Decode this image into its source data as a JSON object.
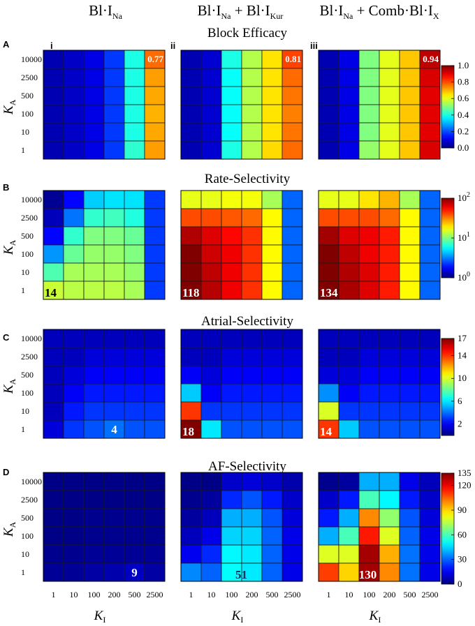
{
  "chart_data": {
    "type": "heatmap",
    "column_headers": [
      {
        "base": "Bl·I",
        "sub": "Na",
        "tail_base": "",
        "tail_sub": ""
      },
      {
        "base": "Bl·I",
        "sub": "Na",
        "tail_base": " + Bl·I",
        "tail_sub": "Kur"
      },
      {
        "base": "Bl·I",
        "sub": "Na",
        "tail_base": " + Comb·Bl·I",
        "tail_sub": "X"
      }
    ],
    "panel_numerals": [
      "i",
      "ii",
      "iii"
    ],
    "xlabel": {
      "base": "K",
      "sub": "I"
    },
    "ylabel": {
      "base": "K",
      "sub": "A"
    },
    "x_ticks": [
      "1",
      "10",
      "100",
      "200",
      "500",
      "2500"
    ],
    "y_ticks": [
      "10000",
      "2500",
      "500",
      "100",
      "10",
      "1"
    ],
    "rows": [
      {
        "letter": "A",
        "title": "Block Efficacy",
        "scale": "linear",
        "range": [
          0,
          1
        ],
        "colorbar_ticks": [
          "0.0",
          "0.2",
          "0.4",
          "0.6",
          "0.8",
          "1.0"
        ],
        "colorbar_tick_values": [
          0,
          0.2,
          0.4,
          0.6,
          0.8,
          1.0
        ],
        "colorbar_label_mode": "plain",
        "annotations": [
          {
            "value": "0.77",
            "row": 0,
            "col": 5,
            "size": "small"
          },
          {
            "value": "0.81",
            "row": 0,
            "col": 5,
            "size": "small"
          },
          {
            "value": "0.94",
            "row": 0,
            "col": 5,
            "size": "small"
          }
        ],
        "matrices": [
          [
            [
              0.05,
              0.07,
              0.1,
              0.18,
              0.4,
              0.77
            ],
            [
              0.05,
              0.07,
              0.1,
              0.18,
              0.4,
              0.72
            ],
            [
              0.05,
              0.07,
              0.1,
              0.18,
              0.4,
              0.71
            ],
            [
              0.05,
              0.07,
              0.1,
              0.18,
              0.4,
              0.7
            ],
            [
              0.05,
              0.07,
              0.1,
              0.18,
              0.4,
              0.71
            ],
            [
              0.05,
              0.07,
              0.1,
              0.18,
              0.42,
              0.72
            ]
          ],
          [
            [
              0.05,
              0.08,
              0.4,
              0.55,
              0.65,
              0.81
            ],
            [
              0.05,
              0.08,
              0.38,
              0.55,
              0.65,
              0.77
            ],
            [
              0.05,
              0.08,
              0.38,
              0.55,
              0.65,
              0.76
            ],
            [
              0.05,
              0.08,
              0.38,
              0.55,
              0.65,
              0.75
            ],
            [
              0.05,
              0.08,
              0.38,
              0.55,
              0.65,
              0.76
            ],
            [
              0.05,
              0.08,
              0.4,
              0.55,
              0.66,
              0.77
            ]
          ],
          [
            [
              0.05,
              0.1,
              0.5,
              0.6,
              0.68,
              0.94
            ],
            [
              0.05,
              0.1,
              0.5,
              0.6,
              0.68,
              0.91
            ],
            [
              0.05,
              0.1,
              0.5,
              0.6,
              0.68,
              0.9
            ],
            [
              0.05,
              0.1,
              0.5,
              0.6,
              0.68,
              0.9
            ],
            [
              0.05,
              0.1,
              0.5,
              0.6,
              0.68,
              0.9
            ],
            [
              0.05,
              0.1,
              0.52,
              0.6,
              0.68,
              0.91
            ]
          ]
        ]
      },
      {
        "letter": "B",
        "title": "Rate-Selectivity",
        "scale": "log",
        "range": [
          1,
          100
        ],
        "colorbar_ticks": [
          "10",
          "10",
          "10"
        ],
        "colorbar_exponents": [
          "0",
          "1",
          "2"
        ],
        "colorbar_tick_values": [
          1,
          10,
          100
        ],
        "colorbar_label_mode": "power",
        "annotations": [
          {
            "value": "14",
            "row": 5,
            "col": 0,
            "size": "big"
          },
          {
            "value": "118",
            "row": 5,
            "col": 0,
            "size": "big"
          },
          {
            "value": "134",
            "row": 5,
            "col": 0,
            "size": "big"
          }
        ],
        "matrices": [
          [
            [
              1.1,
              1.8,
              4.5,
              5.0,
              5.0,
              2.3
            ],
            [
              1.3,
              3.0,
              7.0,
              7.5,
              6.5,
              2.3
            ],
            [
              1.8,
              7.0,
              10,
              10,
              9,
              2.3
            ],
            [
              3.5,
              9,
              11,
              11,
              10,
              2.3
            ],
            [
              8,
              12,
              12,
              12,
              11,
              2.3
            ],
            [
              14,
              13,
              13,
              13,
              12,
              2.3
            ]
          ],
          [
            [
              16,
              16,
              17,
              17,
              12,
              2.8
            ],
            [
              40,
              40,
              38,
              35,
              18,
              2.8
            ],
            [
              80,
              65,
              55,
              45,
              18,
              2.8
            ],
            [
              100,
              70,
              60,
              45,
              18,
              2.8
            ],
            [
              112,
              75,
              60,
              45,
              18,
              2.8
            ],
            [
              118,
              78,
              60,
              45,
              18,
              2.8
            ]
          ],
          [
            [
              16,
              16,
              20,
              25,
              12,
              2.8
            ],
            [
              40,
              40,
              40,
              35,
              18,
              2.8
            ],
            [
              85,
              65,
              60,
              50,
              18,
              2.8
            ],
            [
              110,
              75,
              60,
              50,
              18,
              2.8
            ],
            [
              125,
              80,
              65,
              50,
              18,
              2.8
            ],
            [
              134,
              82,
              65,
              50,
              18,
              2.8
            ]
          ]
        ]
      },
      {
        "letter": "C",
        "title": "Atrial-Selectivity",
        "scale": "linear",
        "range": [
          0,
          17
        ],
        "colorbar_ticks": [
          "2",
          "6",
          "10",
          "14",
          "17"
        ],
        "colorbar_tick_values": [
          2,
          6,
          10,
          14,
          17
        ],
        "colorbar_label_mode": "plain",
        "annotations": [
          {
            "value": "4",
            "row": 5,
            "col": 3,
            "size": "small-mid"
          },
          {
            "value": "18",
            "row": 5,
            "col": 0,
            "size": "big"
          },
          {
            "value": "14",
            "row": 5,
            "col": 0,
            "size": "big"
          }
        ],
        "matrices": [
          [
            [
              1,
              1,
              1,
              1,
              1,
              1
            ],
            [
              1,
              1,
              1.5,
              1.5,
              1.5,
              1.5
            ],
            [
              1,
              1.5,
              2,
              2,
              2,
              2
            ],
            [
              1,
              2,
              2.5,
              2.5,
              2.5,
              2.5
            ],
            [
              1,
              2.5,
              3,
              3,
              3,
              3
            ],
            [
              1.5,
              3,
              3.5,
              4,
              3.5,
              3.5
            ]
          ],
          [
            [
              1,
              1,
              1,
              1,
              1,
              1
            ],
            [
              1,
              1,
              1.5,
              1.5,
              1.5,
              1.5
            ],
            [
              2,
              1.5,
              2,
              2,
              2,
              2
            ],
            [
              5.5,
              2,
              2.5,
              2.5,
              2.5,
              2.5
            ],
            [
              14,
              3,
              3,
              3,
              3,
              3
            ],
            [
              18,
              6,
              3.5,
              3.5,
              3.5,
              3.5
            ]
          ],
          [
            [
              1,
              1,
              1,
              1,
              1,
              1
            ],
            [
              1,
              1,
              1.5,
              1.5,
              1.5,
              1.5
            ],
            [
              1.5,
              1.5,
              2,
              2,
              2,
              2
            ],
            [
              4.5,
              2,
              2.5,
              2.5,
              2.5,
              2.5
            ],
            [
              10,
              3,
              3,
              3,
              3,
              3
            ],
            [
              14,
              5.5,
              3.5,
              3.5,
              3.5,
              3.5
            ]
          ]
        ]
      },
      {
        "letter": "D",
        "title": "AF-Selectivity",
        "scale": "linear",
        "range": [
          0,
          135
        ],
        "colorbar_ticks": [
          "0",
          "30",
          "60",
          "90",
          "120",
          "135"
        ],
        "colorbar_tick_values": [
          0,
          30,
          60,
          90,
          120,
          135
        ],
        "colorbar_label_mode": "plain",
        "annotations": [
          {
            "value": "9",
            "row": 5,
            "col": 4,
            "size": "small-mid"
          },
          {
            "value": "51",
            "row": 5,
            "col": 2,
            "size": "big"
          },
          {
            "value": "130",
            "row": 5,
            "col": 2,
            "size": "big"
          }
        ],
        "matrices": [
          [
            [
              1,
              1,
              1,
              1,
              1,
              1
            ],
            [
              1,
              1,
              1,
              1,
              1,
              1
            ],
            [
              1,
              1,
              2,
              2,
              2,
              2
            ],
            [
              1,
              1,
              2,
              2,
              2,
              2
            ],
            [
              2,
              2,
              3,
              3,
              3,
              3
            ],
            [
              3,
              3,
              5,
              6,
              9,
              5
            ]
          ],
          [
            [
              1,
              1,
              10,
              12,
              10,
              6
            ],
            [
              2,
              4,
              22,
              28,
              20,
              10
            ],
            [
              4,
              8,
              40,
              40,
              28,
              12
            ],
            [
              8,
              14,
              45,
              45,
              30,
              14
            ],
            [
              15,
              22,
              50,
              48,
              30,
              14
            ],
            [
              35,
              30,
              51,
              48,
              30,
              14
            ]
          ],
          [
            [
              2,
              4,
              40,
              40,
              14,
              8
            ],
            [
              10,
              20,
              60,
              50,
              20,
              10
            ],
            [
              20,
              40,
              100,
              70,
              28,
              12
            ],
            [
              40,
              60,
              115,
              80,
              30,
              14
            ],
            [
              80,
              80,
              130,
              95,
              32,
              14
            ],
            [
              110,
              90,
              130,
              100,
              32,
              14
            ]
          ]
        ]
      }
    ]
  }
}
